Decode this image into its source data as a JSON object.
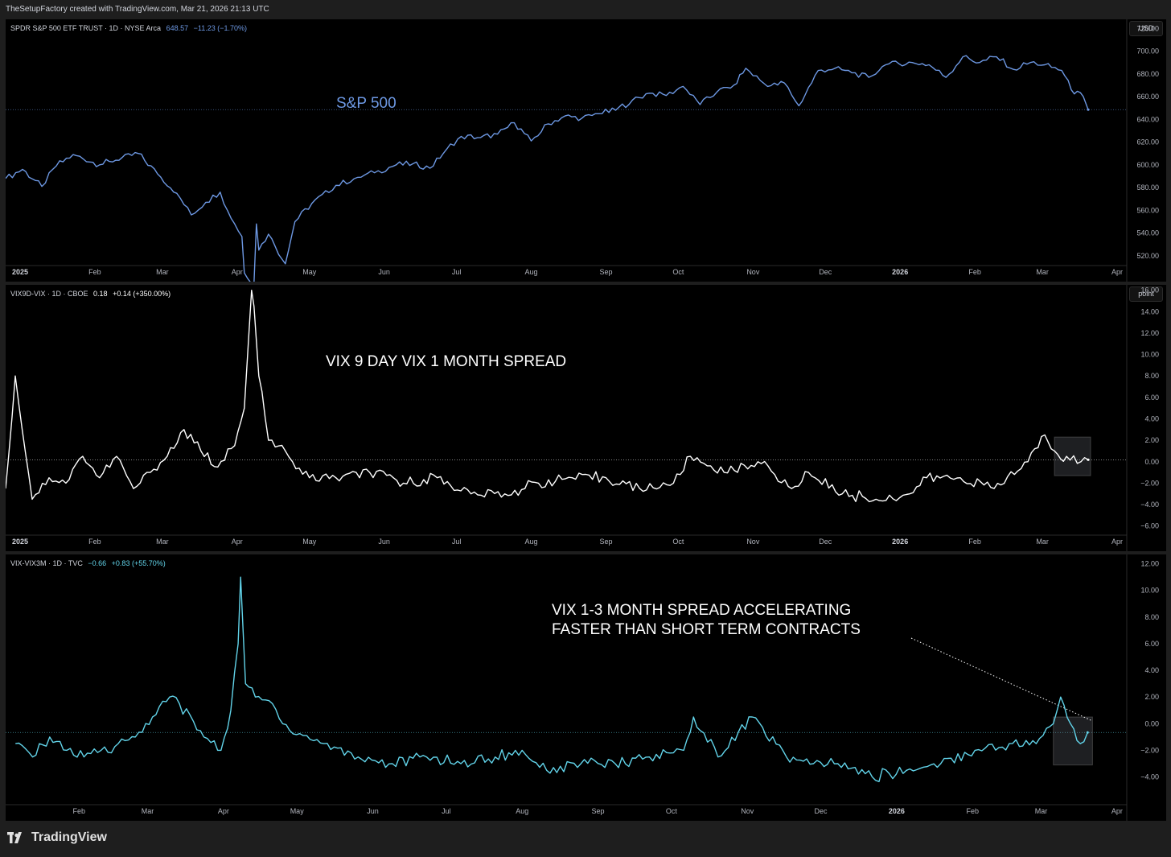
{
  "header": {
    "credit": "TheSetupFactory created with TradingView.com, Mar 21, 2026 21:13 UTC"
  },
  "footer": {
    "brand": "TradingView"
  },
  "colors": {
    "spy": "#6d98e3",
    "vix9d": "#ffffff",
    "vix3m": "#62d4ea",
    "axis_text": "#b2b5be",
    "background": "#000000"
  },
  "panes": [
    {
      "symbol": "SPDR S&P 500 ETF TRUST · 1D · NYSE Arca",
      "last": "648.57",
      "change": "−11.23 (−1.70%)",
      "unit": "USD",
      "annotation": "S&P 500",
      "y_ticks": [
        "720.00",
        "700.00",
        "680.00",
        "660.00",
        "640.00",
        "620.00",
        "600.00",
        "580.00",
        "560.00",
        "540.00",
        "520.00"
      ],
      "x_ticks": [
        "2025",
        "Feb",
        "Mar",
        "Apr",
        "May",
        "Jun",
        "Jul",
        "Aug",
        "Sep",
        "Oct",
        "Nov",
        "Dec",
        "2026",
        "Feb",
        "Mar",
        "Apr"
      ]
    },
    {
      "symbol": "VIX9D-VIX · 1D · CBOE",
      "last": "0.18",
      "change": "+0.14 (+350.00%)",
      "unit": "point",
      "annotation": "VIX 9 DAY VIX 1 MONTH SPREAD",
      "y_ticks": [
        "16.00",
        "14.00",
        "12.00",
        "10.00",
        "8.00",
        "6.00",
        "4.00",
        "2.00",
        "0.00",
        "−2.00",
        "−4.00",
        "−6.00"
      ],
      "x_ticks": [
        "2025",
        "Feb",
        "Mar",
        "Apr",
        "May",
        "Jun",
        "Jul",
        "Aug",
        "Sep",
        "Oct",
        "Nov",
        "Dec",
        "2026",
        "Feb",
        "Mar",
        "Apr"
      ]
    },
    {
      "symbol": "VIX-VIX3M · 1D · TVC",
      "last": "−0.66",
      "change": "+0.83 (+55.70%)",
      "unit": "",
      "annotation_line1": "VIX 1-3 MONTH SPREAD ACCELERATING",
      "annotation_line2": "FASTER THAN SHORT TERM CONTRACTS",
      "y_ticks": [
        "12.00",
        "10.00",
        "8.00",
        "6.00",
        "4.00",
        "2.00",
        "0.00",
        "−2.00",
        "−4.00"
      ],
      "x_ticks": [
        "Feb",
        "Mar",
        "Apr",
        "May",
        "Jun",
        "Jul",
        "Aug",
        "Sep",
        "Oct",
        "Nov",
        "Dec",
        "2026",
        "Feb",
        "Mar",
        "Apr"
      ]
    }
  ],
  "chart_data": [
    {
      "type": "line",
      "series": [
        {
          "name": "SPDR S&P 500 ETF TRUST",
          "x": [
            "2024-12-26",
            "2025-01-02",
            "2025-01-10",
            "2025-01-16",
            "2025-01-23",
            "2025-02-03",
            "2025-02-07",
            "2025-02-19",
            "2025-02-27",
            "2025-03-07",
            "2025-03-13",
            "2025-03-19",
            "2025-03-25",
            "2025-03-28",
            "2025-04-03",
            "2025-04-04",
            "2025-04-08",
            "2025-04-09",
            "2025-04-10",
            "2025-04-14",
            "2025-04-21",
            "2025-04-25",
            "2025-05-02",
            "2025-05-12",
            "2025-05-21",
            "2025-05-28",
            "2025-06-06",
            "2025-06-13",
            "2025-06-20",
            "2025-06-27",
            "2025-07-03",
            "2025-07-11",
            "2025-07-18",
            "2025-07-25",
            "2025-08-01",
            "2025-08-08",
            "2025-08-15",
            "2025-08-22",
            "2025-08-29",
            "2025-09-05",
            "2025-09-12",
            "2025-09-19",
            "2025-09-26",
            "2025-10-03",
            "2025-10-10",
            "2025-10-17",
            "2025-10-24",
            "2025-10-29",
            "2025-11-07",
            "2025-11-14",
            "2025-11-20",
            "2025-11-28",
            "2025-12-05",
            "2025-12-12",
            "2025-12-19",
            "2025-12-26",
            "2026-01-06",
            "2026-01-13",
            "2026-01-20",
            "2026-01-27",
            "2026-02-03",
            "2026-02-10",
            "2026-02-17",
            "2026-02-24",
            "2026-03-02",
            "2026-03-09",
            "2026-03-13",
            "2026-03-18",
            "2026-03-20"
          ],
          "values": [
            588,
            596,
            581,
            599,
            609,
            600,
            603,
            610,
            592,
            575,
            556,
            567,
            576,
            560,
            537,
            505,
            496,
            548,
            525,
            539,
            513,
            550,
            566,
            582,
            589,
            593,
            600,
            601,
            597,
            614,
            625,
            624,
            627,
            637,
            621,
            636,
            643,
            641,
            645,
            648,
            657,
            663,
            661,
            669,
            653,
            664,
            670,
            685,
            669,
            672,
            652,
            683,
            685,
            681,
            677,
            688,
            690,
            688,
            677,
            695,
            690,
            695,
            684,
            690,
            688,
            683,
            666,
            660,
            648.57
          ]
        }
      ],
      "ylim": [
        510,
        728
      ]
    },
    {
      "type": "line",
      "series": [
        {
          "name": "VIX9D-VIX",
          "x": [
            "2024-12-26",
            "2024-12-30",
            "2025-01-06",
            "2025-01-13",
            "2025-01-20",
            "2025-01-27",
            "2025-02-03",
            "2025-02-10",
            "2025-02-17",
            "2025-02-24",
            "2025-03-03",
            "2025-03-10",
            "2025-03-17",
            "2025-03-24",
            "2025-03-31",
            "2025-04-04",
            "2025-04-07",
            "2025-04-08",
            "2025-04-10",
            "2025-04-14",
            "2025-04-21",
            "2025-04-24",
            "2025-05-01",
            "2025-05-12",
            "2025-05-26",
            "2025-06-09",
            "2025-06-23",
            "2025-07-07",
            "2025-07-21",
            "2025-08-04",
            "2025-08-18",
            "2025-09-01",
            "2025-09-15",
            "2025-09-29",
            "2025-10-06",
            "2025-10-20",
            "2025-11-03",
            "2025-11-17",
            "2025-11-24",
            "2025-12-08",
            "2025-12-22",
            "2026-01-05",
            "2026-01-12",
            "2026-01-26",
            "2026-02-09",
            "2026-02-23",
            "2026-03-02",
            "2026-03-06",
            "2026-03-11",
            "2026-03-17",
            "2026-03-20"
          ],
          "values": [
            -2.5,
            8.0,
            -3.5,
            -1.5,
            -2.0,
            0.5,
            -1.5,
            0.5,
            -2.5,
            -1.0,
            0.5,
            3.0,
            1.0,
            -0.5,
            1.5,
            5.0,
            16.0,
            14.5,
            8.0,
            2.0,
            1.0,
            0.0,
            -1.5,
            -1.5,
            -1.0,
            -2.0,
            -1.5,
            -3.0,
            -3.0,
            -2.0,
            -1.5,
            -1.5,
            -2.5,
            -2.0,
            0.5,
            -1.0,
            0.0,
            -2.5,
            -1.0,
            -3.0,
            -3.5,
            -3.0,
            -1.5,
            -1.5,
            -2.5,
            0.0,
            2.5,
            1.0,
            0.5,
            0.0,
            0.18
          ]
        }
      ],
      "ylim": [
        -7,
        16.5
      ]
    },
    {
      "type": "line",
      "series": [
        {
          "name": "VIX-VIX3M",
          "x": [
            "2025-01-06",
            "2025-01-13",
            "2025-01-20",
            "2025-01-27",
            "2025-02-03",
            "2025-02-10",
            "2025-02-17",
            "2025-02-24",
            "2025-03-03",
            "2025-03-10",
            "2025-03-14",
            "2025-03-24",
            "2025-03-31",
            "2025-04-04",
            "2025-04-07",
            "2025-04-08",
            "2025-04-10",
            "2025-04-14",
            "2025-04-21",
            "2025-04-28",
            "2025-05-12",
            "2025-05-26",
            "2025-06-09",
            "2025-06-23",
            "2025-07-07",
            "2025-07-21",
            "2025-08-01",
            "2025-08-11",
            "2025-08-25",
            "2025-09-08",
            "2025-09-22",
            "2025-10-06",
            "2025-10-10",
            "2025-10-20",
            "2025-11-03",
            "2025-11-17",
            "2025-11-28",
            "2025-12-08",
            "2025-12-22",
            "2026-01-05",
            "2026-01-19",
            "2026-02-02",
            "2026-02-16",
            "2026-02-27",
            "2026-03-06",
            "2026-03-09",
            "2026-03-13",
            "2026-03-17",
            "2026-03-20"
          ],
          "values": [
            -1.5,
            -2.5,
            -1.0,
            -2.0,
            -2.5,
            -2.0,
            -1.5,
            -1.0,
            0.5,
            2.0,
            1.5,
            -1.0,
            -2.0,
            1.0,
            6.0,
            11.0,
            3.0,
            2.0,
            1.5,
            -0.5,
            -1.5,
            -2.5,
            -3.0,
            -2.5,
            -3.0,
            -2.5,
            -2.0,
            -3.5,
            -3.0,
            -3.0,
            -2.5,
            -2.0,
            0.5,
            -2.5,
            0.5,
            -2.5,
            -3.0,
            -3.0,
            -4.0,
            -3.5,
            -3.0,
            -2.0,
            -1.5,
            -1.5,
            0.0,
            2.0,
            0.0,
            -1.5,
            -0.66
          ]
        }
      ],
      "ylim": [
        -5.9,
        12.7
      ]
    }
  ]
}
